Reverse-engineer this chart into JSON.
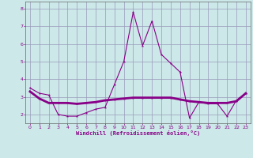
{
  "xlabel": "Windchill (Refroidissement éolien,°C)",
  "bg_color": "#cce8e8",
  "grid_color": "#9999bb",
  "line_color": "#880088",
  "line1_x": [
    0,
    1,
    2,
    3,
    4,
    5,
    6,
    7,
    8,
    9,
    10,
    11,
    12,
    13,
    14,
    15,
    16,
    17,
    18,
    19,
    20,
    21,
    22,
    23
  ],
  "line1_y": [
    3.5,
    3.2,
    3.1,
    2.0,
    1.9,
    1.9,
    2.1,
    2.3,
    2.4,
    3.7,
    5.0,
    7.8,
    5.9,
    7.3,
    5.4,
    4.9,
    4.4,
    1.8,
    2.7,
    2.6,
    2.6,
    1.9,
    2.8,
    3.2
  ],
  "line2_x": [
    0,
    1,
    2,
    3,
    4,
    5,
    6,
    7,
    8,
    9,
    10,
    11,
    12,
    13,
    14,
    15,
    16,
    17,
    18,
    19,
    20,
    21,
    22,
    23
  ],
  "line2_y": [
    3.3,
    2.9,
    2.65,
    2.65,
    2.65,
    2.6,
    2.65,
    2.7,
    2.8,
    2.85,
    2.9,
    2.95,
    2.95,
    2.95,
    2.95,
    2.95,
    2.85,
    2.75,
    2.7,
    2.65,
    2.65,
    2.65,
    2.75,
    3.2
  ],
  "xlim": [
    -0.5,
    23.5
  ],
  "ylim": [
    1.5,
    8.4
  ],
  "yticks": [
    2,
    3,
    4,
    5,
    6,
    7,
    8
  ],
  "xticks": [
    0,
    1,
    2,
    3,
    4,
    5,
    6,
    7,
    8,
    9,
    10,
    11,
    12,
    13,
    14,
    15,
    16,
    17,
    18,
    19,
    20,
    21,
    22,
    23
  ]
}
